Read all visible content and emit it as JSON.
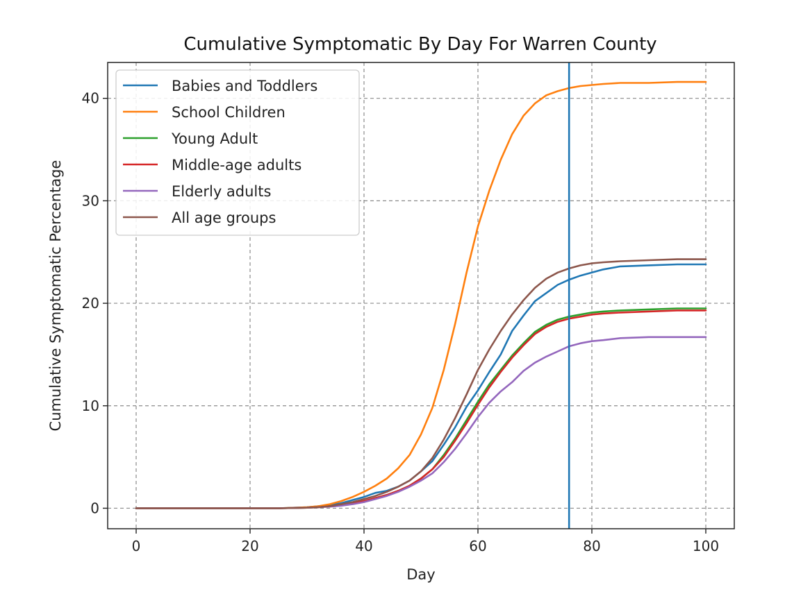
{
  "chart_data": {
    "type": "line",
    "title": "Cumulative Symptomatic By Day For Warren County",
    "xlabel": "Day",
    "ylabel": "Cumulative Symptomatic Percentage",
    "xlim": [
      -5,
      105
    ],
    "ylim": [
      -2,
      43.5
    ],
    "xticks": [
      0,
      20,
      40,
      60,
      80,
      100
    ],
    "yticks": [
      0,
      10,
      20,
      30,
      40
    ],
    "grid": true,
    "legend_position": "upper-left",
    "x": [
      0,
      10,
      20,
      25,
      30,
      32,
      34,
      36,
      38,
      40,
      42,
      44,
      46,
      48,
      50,
      52,
      54,
      56,
      58,
      60,
      62,
      64,
      66,
      68,
      70,
      72,
      74,
      76,
      78,
      80,
      82,
      85,
      90,
      95,
      100
    ],
    "series": [
      {
        "name": "Babies and Toddlers",
        "color": "#1f77b4",
        "values": [
          0,
          0,
          0,
          0,
          0.1,
          0.2,
          0.3,
          0.5,
          0.8,
          1.1,
          1.5,
          1.7,
          2.1,
          2.7,
          3.6,
          4.6,
          6.2,
          7.9,
          9.9,
          11.5,
          13.3,
          15.0,
          17.3,
          18.8,
          20.2,
          21.0,
          21.8,
          22.3,
          22.7,
          23.0,
          23.3,
          23.6,
          23.7,
          23.8,
          23.8
        ]
      },
      {
        "name": "School Children",
        "color": "#ff7f0e",
        "values": [
          0,
          0,
          0,
          0,
          0.1,
          0.2,
          0.4,
          0.7,
          1.1,
          1.6,
          2.2,
          2.9,
          3.9,
          5.2,
          7.2,
          9.8,
          13.5,
          18.0,
          23.0,
          27.5,
          31.0,
          34.0,
          36.5,
          38.3,
          39.5,
          40.3,
          40.7,
          41.0,
          41.2,
          41.3,
          41.4,
          41.5,
          41.5,
          41.6,
          41.6
        ]
      },
      {
        "name": "Young Adult",
        "color": "#2ca02c",
        "values": [
          0,
          0,
          0,
          0,
          0.05,
          0.1,
          0.2,
          0.3,
          0.5,
          0.7,
          1.0,
          1.3,
          1.7,
          2.2,
          2.9,
          3.8,
          5.2,
          6.8,
          8.6,
          10.4,
          12.1,
          13.5,
          14.9,
          16.1,
          17.2,
          17.9,
          18.4,
          18.7,
          18.9,
          19.1,
          19.2,
          19.3,
          19.4,
          19.5,
          19.5
        ]
      },
      {
        "name": "Middle-age adults",
        "color": "#d62728",
        "values": [
          0,
          0,
          0,
          0,
          0.05,
          0.1,
          0.2,
          0.3,
          0.5,
          0.7,
          1.0,
          1.3,
          1.7,
          2.2,
          2.9,
          3.8,
          5.0,
          6.6,
          8.3,
          10.1,
          11.8,
          13.3,
          14.7,
          15.9,
          17.0,
          17.7,
          18.2,
          18.5,
          18.7,
          18.9,
          19.0,
          19.1,
          19.2,
          19.3,
          19.3
        ]
      },
      {
        "name": "Elderly adults",
        "color": "#9467bd",
        "values": [
          0,
          0,
          0,
          0,
          0.05,
          0.1,
          0.15,
          0.25,
          0.4,
          0.6,
          0.9,
          1.2,
          1.6,
          2.1,
          2.7,
          3.4,
          4.5,
          5.8,
          7.3,
          8.9,
          10.3,
          11.4,
          12.3,
          13.4,
          14.2,
          14.8,
          15.3,
          15.8,
          16.1,
          16.3,
          16.4,
          16.6,
          16.7,
          16.7,
          16.7
        ]
      },
      {
        "name": "All age groups",
        "color": "#8c564b",
        "values": [
          0,
          0,
          0,
          0,
          0.05,
          0.1,
          0.2,
          0.4,
          0.6,
          0.9,
          1.2,
          1.6,
          2.1,
          2.7,
          3.6,
          4.9,
          6.7,
          8.8,
          11.1,
          13.5,
          15.5,
          17.3,
          18.9,
          20.3,
          21.5,
          22.4,
          23.0,
          23.4,
          23.7,
          23.9,
          24.0,
          24.1,
          24.2,
          24.3,
          24.3
        ]
      }
    ],
    "vline": {
      "x": 76,
      "color": "#1f77b4"
    }
  }
}
